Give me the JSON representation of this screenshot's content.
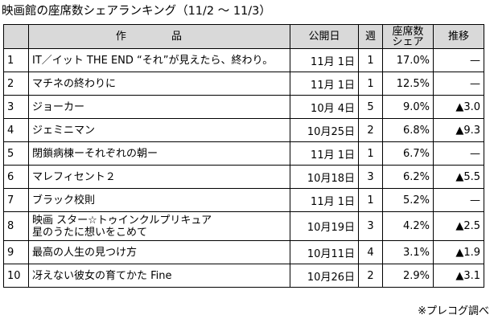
{
  "title": "映画館の座席数シェアランキング（11/2 〜 11/3）",
  "headers": {
    "rank": "",
    "title": "作 品",
    "release": "公開日",
    "week": "週",
    "share_line1": "座席数",
    "share_line2": "シェア",
    "trend": "推移"
  },
  "rows": [
    {
      "rank": "1",
      "title": "IT／イット THE END “それ”が見えたら、終わり。",
      "title2": "",
      "release": "11月 1日",
      "week": "1",
      "share": "17.0%",
      "trend": "—"
    },
    {
      "rank": "2",
      "title": "マチネの終わりに",
      "title2": "",
      "release": "11月 1日",
      "week": "1",
      "share": "12.5%",
      "trend": "—"
    },
    {
      "rank": "3",
      "title": "ジョーカー",
      "title2": "",
      "release": "10月 4日",
      "week": "5",
      "share": "9.0%",
      "trend": "▲3.0"
    },
    {
      "rank": "4",
      "title": "ジェミニマン",
      "title2": "",
      "release": "10月25日",
      "week": "2",
      "share": "6.8%",
      "trend": "▲9.3"
    },
    {
      "rank": "5",
      "title": "閉鎖病棟ーそれぞれの朝ー",
      "title2": "",
      "release": "11月 1日",
      "week": "1",
      "share": "6.7%",
      "trend": "—"
    },
    {
      "rank": "6",
      "title": "マレフィセント２",
      "title2": "",
      "release": "10月18日",
      "week": "3",
      "share": "6.2%",
      "trend": "▲5.5"
    },
    {
      "rank": "7",
      "title": "ブラック校則",
      "title2": "",
      "release": "11月 1日",
      "week": "1",
      "share": "5.2%",
      "trend": "—"
    },
    {
      "rank": "8",
      "title": "映画 スター☆トゥインクルプリキュア",
      "title2": "星のうたに想いをこめて",
      "release": "10月19日",
      "week": "3",
      "share": "4.2%",
      "trend": "▲2.5"
    },
    {
      "rank": "9",
      "title": "最高の人生の見つけ方",
      "title2": "",
      "release": "10月11日",
      "week": "4",
      "share": "3.1%",
      "trend": "▲1.9"
    },
    {
      "rank": "10",
      "title": "冴えない彼女の育てかた Fine",
      "title2": "",
      "release": "10月26日",
      "week": "2",
      "share": "2.9%",
      "trend": "▲3.1"
    }
  ],
  "source_note": "※プレコグ調べ"
}
